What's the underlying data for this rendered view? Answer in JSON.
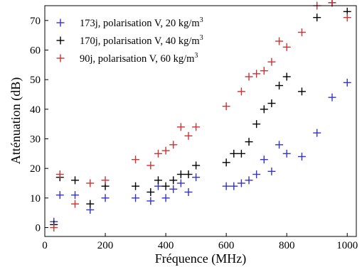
{
  "chart_data": {
    "type": "scatter",
    "title": "",
    "xlabel": "Fréquence (MHz)",
    "ylabel": "Atténuation (dB)",
    "xlim": [
      0,
      1030
    ],
    "ylim": [
      -3,
      75
    ],
    "xticks": [
      0,
      200,
      400,
      600,
      800,
      1000
    ],
    "yticks": [
      0,
      10,
      20,
      30,
      40,
      50,
      60,
      70
    ],
    "xtick_labels": [
      "0",
      "200",
      "400",
      "600",
      "800",
      "1000"
    ],
    "ytick_labels": [
      "0",
      "10",
      "20",
      "30",
      "40",
      "50",
      "60",
      "70"
    ],
    "grid": false,
    "legend_position": "top-left",
    "marker": "+",
    "series": [
      {
        "name": "173j, polarisation V, 20 kg/m",
        "name_sup": "3",
        "color": "#3333cc",
        "points": [
          [
            30,
            2
          ],
          [
            50,
            11
          ],
          [
            100,
            11
          ],
          [
            150,
            6
          ],
          [
            200,
            10
          ],
          [
            300,
            10
          ],
          [
            350,
            9
          ],
          [
            375,
            14
          ],
          [
            400,
            10
          ],
          [
            425,
            13
          ],
          [
            450,
            15
          ],
          [
            475,
            12
          ],
          [
            500,
            17
          ],
          [
            600,
            14
          ],
          [
            625,
            14
          ],
          [
            650,
            15
          ],
          [
            675,
            16
          ],
          [
            700,
            18
          ],
          [
            725,
            23
          ],
          [
            750,
            19
          ],
          [
            775,
            28
          ],
          [
            800,
            25
          ],
          [
            850,
            24
          ],
          [
            900,
            32
          ],
          [
            950,
            44
          ],
          [
            1000,
            49
          ]
        ]
      },
      {
        "name": "170j, polarisation V, 40 kg/m",
        "name_sup": "3",
        "color": "#000000",
        "points": [
          [
            30,
            1
          ],
          [
            50,
            17
          ],
          [
            100,
            16
          ],
          [
            150,
            8
          ],
          [
            200,
            14
          ],
          [
            300,
            14
          ],
          [
            350,
            12
          ],
          [
            375,
            16
          ],
          [
            400,
            14
          ],
          [
            425,
            16
          ],
          [
            450,
            18
          ],
          [
            475,
            18
          ],
          [
            500,
            21
          ],
          [
            600,
            22
          ],
          [
            625,
            25
          ],
          [
            650,
            25
          ],
          [
            675,
            29
          ],
          [
            700,
            35
          ],
          [
            725,
            40
          ],
          [
            750,
            42
          ],
          [
            775,
            48
          ],
          [
            800,
            51
          ],
          [
            850,
            46
          ],
          [
            900,
            71
          ],
          [
            950,
            76
          ],
          [
            1000,
            73
          ]
        ]
      },
      {
        "name": "90j, polarisation V, 60 kg/m",
        "name_sup": "3",
        "color": "#cc3333",
        "points": [
          [
            30,
            0
          ],
          [
            50,
            18
          ],
          [
            100,
            8
          ],
          [
            150,
            15
          ],
          [
            200,
            16
          ],
          [
            300,
            23
          ],
          [
            350,
            21
          ],
          [
            375,
            25
          ],
          [
            400,
            26
          ],
          [
            425,
            28
          ],
          [
            450,
            34
          ],
          [
            475,
            31
          ],
          [
            500,
            34
          ],
          [
            600,
            41
          ],
          [
            650,
            46
          ],
          [
            675,
            51
          ],
          [
            700,
            52
          ],
          [
            725,
            53
          ],
          [
            750,
            56
          ],
          [
            775,
            63
          ],
          [
            800,
            61
          ],
          [
            850,
            66
          ],
          [
            900,
            75
          ],
          [
            950,
            76
          ],
          [
            1000,
            71
          ]
        ]
      }
    ]
  }
}
